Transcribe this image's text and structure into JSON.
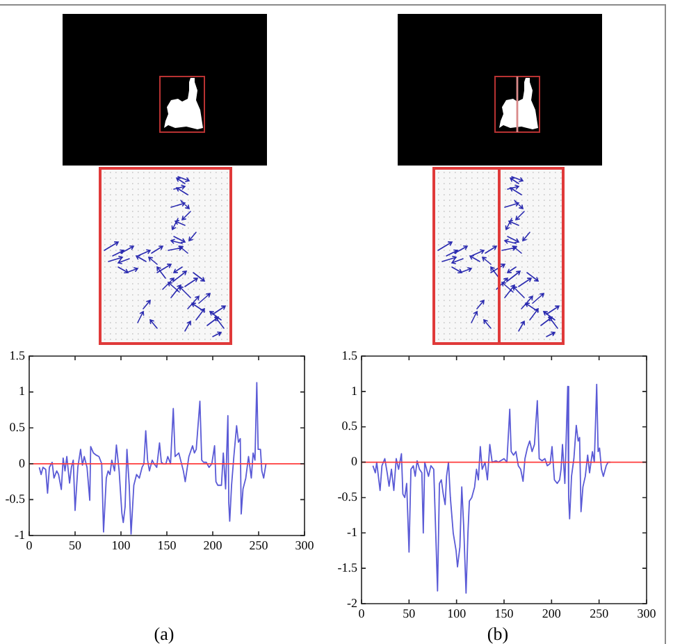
{
  "chart_data": [
    {
      "type": "line",
      "x": [
        11,
        13,
        15,
        18,
        20,
        22,
        25,
        27,
        30,
        32,
        35,
        37,
        39,
        41,
        44,
        46,
        48,
        50,
        53,
        56,
        58,
        60,
        63,
        66,
        67,
        70,
        73,
        76,
        79,
        81,
        84,
        86,
        88,
        90,
        93,
        95,
        98,
        101,
        102.5,
        104.5,
        106.5,
        109,
        111,
        114,
        117,
        120,
        123,
        125,
        127,
        129,
        131,
        134,
        136,
        139,
        142,
        144,
        146,
        149,
        151,
        154,
        157,
        159,
        163,
        165,
        168,
        170,
        174,
        178,
        180,
        182,
        186,
        188,
        190,
        193,
        196,
        199,
        202,
        203.5,
        205.5,
        209.5,
        211.5,
        214,
        216.5,
        217.5,
        218.5,
        220.5,
        223,
        226,
        228,
        230,
        231,
        233,
        236,
        239,
        242,
        244,
        246,
        248,
        249.5,
        252,
        253.5,
        255.5,
        258
      ],
      "series": [
        {
          "color": "#5a5ad6",
          "values": [
            -0.05,
            -0.15,
            -0.05,
            -0.08,
            -0.41,
            -0.05,
            0.02,
            -0.2,
            -0.1,
            -0.15,
            -0.36,
            0.08,
            -0.1,
            0.1,
            -0.27,
            -0.05,
            0.05,
            -0.65,
            -0.05,
            0.2,
            -0.02,
            0.1,
            -0.05,
            -0.51,
            0.24,
            0.15,
            0.12,
            0.1,
            0,
            -0.95,
            -0.2,
            -0.1,
            -0.15,
            0.05,
            -0.1,
            0.26,
            -0.1,
            -0.69,
            -0.82,
            -0.6,
            0.2,
            -0.3,
            -0.98,
            -0.3,
            -0.15,
            -0.2,
            -0.05,
            0,
            0.46,
            0.05,
            -0.1,
            0.05,
            0,
            -0.05,
            0.29,
            0.02,
            0,
            0,
            0.1,
            0,
            0.77,
            0.1,
            0.15,
            0.05,
            -0.1,
            -0.25,
            0.1,
            0.25,
            0.15,
            0.2,
            0.87,
            0.05,
            0.02,
            0.02,
            -0.05,
            0,
            0.25,
            -0.25,
            -0.3,
            -0.3,
            0.15,
            -0.35,
            0.67,
            -0.55,
            -0.8,
            -0.3,
            0.1,
            0.53,
            0.3,
            0.35,
            -0.7,
            -0.35,
            -0.2,
            0.1,
            -0.2,
            0.15,
            0.05,
            1.13,
            0.2,
            0.2,
            -0.1,
            -0.2,
            0
          ]
        }
      ],
      "xlim": [
        0,
        300
      ],
      "xticks": [
        0,
        50,
        100,
        150,
        200,
        250,
        300
      ],
      "ylim": [
        -1,
        1.5
      ],
      "yticks": [
        -1,
        -0.5,
        0,
        0.5,
        1,
        1.5
      ],
      "ref_lines": [
        {
          "axis": "y",
          "value": 0,
          "color": "#ff3b3b"
        }
      ],
      "annotations": [
        "(a)"
      ]
    },
    {
      "type": "line",
      "x": [
        12,
        14.5,
        16,
        19.5,
        21.5,
        24.5,
        27,
        29,
        31.5,
        34,
        36.5,
        39,
        42,
        43.5,
        45.5,
        47.5,
        50,
        52,
        54.5,
        56.5,
        58.5,
        61,
        63.5,
        65,
        66.5,
        68.5,
        70.5,
        73,
        76,
        80,
        82,
        84,
        86,
        88,
        89.5,
        91.5,
        93.5,
        96.5,
        99.5,
        101,
        103.5,
        105.5,
        107.5,
        110,
        112,
        113.5,
        116,
        119,
        121,
        123,
        125,
        127,
        130,
        132.5,
        135,
        137.5,
        141.5,
        144,
        150,
        153,
        156,
        157.5,
        160,
        162.5,
        165,
        167.5,
        170,
        172,
        174.5,
        177,
        179.5,
        182,
        185,
        187,
        190,
        193,
        195.5,
        198.5,
        200.5,
        203,
        206,
        208.5,
        210,
        211.5,
        214,
        217,
        218,
        219,
        221,
        223.5,
        226,
        228,
        229.5,
        231,
        233,
        235.5,
        238,
        240,
        243,
        245,
        247.5,
        249,
        250.5,
        252.5,
        254.5,
        257.5,
        259.5,
        262
      ],
      "series": [
        {
          "color": "#5a5ad6",
          "values": [
            -0.05,
            -0.15,
            0,
            -0.4,
            -0.05,
            0.05,
            -0.15,
            -0.34,
            -0.1,
            -0.4,
            0.05,
            -0.1,
            0.12,
            -0.45,
            -0.5,
            -0.3,
            -1.27,
            -0.1,
            -0.05,
            -0.2,
            0.02,
            -0.1,
            -0.15,
            -1,
            0,
            -0.1,
            -0.2,
            -0.05,
            -0.1,
            -1.82,
            -0.3,
            -0.25,
            -0.45,
            -0.6,
            -0.2,
            0,
            -0.5,
            -1,
            -1.25,
            -1.48,
            -1.2,
            -0.35,
            -0.9,
            -1.85,
            -1,
            -0.55,
            -0.5,
            -0.35,
            -0.1,
            -0.25,
            0.22,
            -0.1,
            0,
            -0.25,
            0.25,
            0,
            0.02,
            0,
            0.05,
            0,
            0.75,
            0.15,
            0.1,
            0.15,
            -0.05,
            -0.1,
            -0.27,
            0.05,
            0.2,
            0.3,
            0.15,
            0.25,
            0.87,
            0.05,
            0.02,
            0.05,
            -0.05,
            -0.02,
            0.22,
            -0.25,
            -0.3,
            -0.25,
            -0.1,
            0.25,
            -0.3,
            1.07,
            -0.5,
            -0.8,
            -0.2,
            0.05,
            0.52,
            0.3,
            0.35,
            -0.7,
            -0.35,
            -0.2,
            0.1,
            -0.15,
            0.15,
            0,
            1.1,
            0.15,
            0.2,
            -0.1,
            -0.2,
            -0.05,
            0,
            0
          ]
        }
      ],
      "xlim": [
        0,
        300
      ],
      "xticks": [
        0,
        50,
        100,
        150,
        200,
        250,
        300
      ],
      "ylim": [
        -2,
        1.5
      ],
      "yticks": [
        -2,
        -1.5,
        -1,
        -0.5,
        0,
        0.5,
        1,
        1.5
      ],
      "ref_lines": [
        {
          "axis": "y",
          "value": 0,
          "color": "#ff3b3b"
        }
      ],
      "annotations": [
        "(b)"
      ]
    }
  ]
}
